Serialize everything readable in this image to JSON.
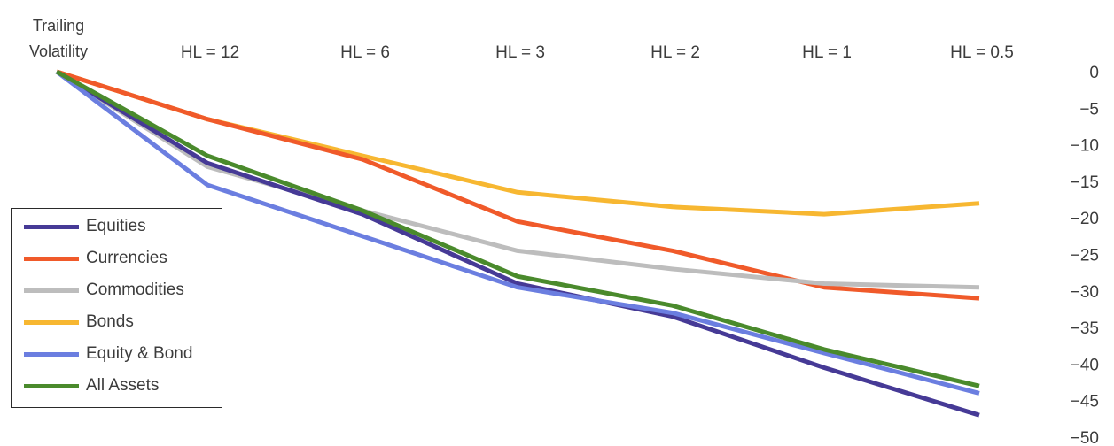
{
  "chart_data": {
    "type": "line",
    "corner_label": [
      "Trailing",
      "Volatility"
    ],
    "categories": [
      "Trailing Volatility",
      "HL = 12",
      "HL = 6",
      "HL = 3",
      "HL = 2",
      "HL = 1",
      "HL = 0.5"
    ],
    "category_labels": [
      "HL = 12",
      "HL = 6",
      "HL = 3",
      "HL = 2",
      "HL = 1",
      "HL = 0.5"
    ],
    "x_axis_position": "top",
    "y_axis_position": "right",
    "ylim": [
      -50,
      0
    ],
    "yticks": [
      0,
      -5,
      -10,
      -15,
      -20,
      -25,
      -30,
      -35,
      -40,
      -45,
      -50
    ],
    "ytick_labels": [
      "0",
      "−5",
      "−10",
      "−15",
      "−20",
      "−25",
      "−30",
      "−35",
      "−40",
      "−45",
      "−50"
    ],
    "grid": false,
    "legend_placement": "bottom-left",
    "series": [
      {
        "name": "Equities",
        "color": "#463a96",
        "values": [
          0,
          -12.5,
          -19.5,
          -29,
          -33.5,
          -40.5,
          -47
        ]
      },
      {
        "name": "Currencies",
        "color": "#f05a2a",
        "values": [
          0,
          -6.5,
          -12,
          -20.5,
          -24.5,
          -29.5,
          -31
        ]
      },
      {
        "name": "Commodities",
        "color": "#bdbdbd",
        "values": [
          0,
          -13,
          -19,
          -24.5,
          -27,
          -29,
          -29.5
        ]
      },
      {
        "name": "Bonds",
        "color": "#f7b731",
        "values": [
          0,
          -6.5,
          -11.5,
          -16.5,
          -18.5,
          -19.5,
          -18
        ]
      },
      {
        "name": "Equity & Bond",
        "color": "#6b7ee0",
        "values": [
          0,
          -15.5,
          -22.5,
          -29.5,
          -33,
          -38.5,
          -44
        ]
      },
      {
        "name": "All Assets",
        "color": "#4a8a2c",
        "values": [
          0,
          -11.5,
          -19,
          -28,
          -32,
          -38,
          -43
        ]
      }
    ]
  }
}
